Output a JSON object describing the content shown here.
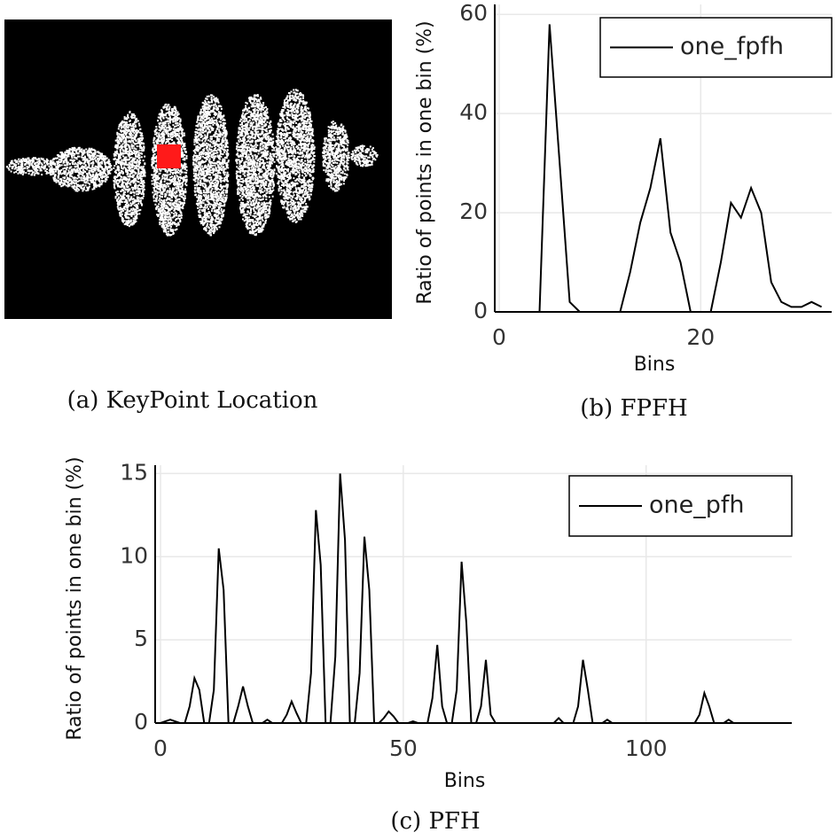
{
  "image_panel": {
    "caption": "(a) KeyPoint Location"
  },
  "chart_data": [
    {
      "type": "line",
      "caption": "(b) FPFH",
      "xlabel": "Bins",
      "ylabel": "Ratio of points in one bin (%)",
      "xlim": [
        0,
        33
      ],
      "xticks": [
        0,
        20
      ],
      "ylim": [
        0,
        62
      ],
      "yticks": [
        0,
        20,
        40,
        60
      ],
      "grid": true,
      "legend": "upper right",
      "series": [
        {
          "name": "one_fpfh",
          "color": "#000000",
          "x": [
            0,
            1,
            2,
            3,
            4,
            5,
            6,
            7,
            8,
            9,
            10,
            11,
            12,
            13,
            14,
            15,
            16,
            17,
            18,
            19,
            20,
            21,
            22,
            23,
            24,
            25,
            26,
            27,
            28,
            29,
            30,
            31,
            32
          ],
          "values": [
            0,
            0,
            0,
            0,
            0,
            58,
            30,
            2,
            0,
            0,
            0,
            0,
            0,
            8,
            18,
            25,
            35,
            16,
            10,
            0,
            0,
            0,
            10,
            22,
            19,
            25,
            20,
            6,
            2,
            1,
            1,
            2,
            1
          ]
        }
      ]
    },
    {
      "type": "line",
      "caption": "(c) PFH",
      "xlabel": "Bins",
      "ylabel": "Ratio of points in one bin (%)",
      "xlim": [
        0,
        130
      ],
      "xticks": [
        0,
        50,
        100
      ],
      "ylim": [
        0,
        15.5
      ],
      "yticks": [
        0,
        5,
        10,
        15
      ],
      "grid": true,
      "legend": "upper right",
      "series": [
        {
          "name": "one_pfh",
          "color": "#000000",
          "x": [
            0,
            1,
            2,
            3,
            4,
            5,
            6,
            7,
            8,
            9,
            10,
            11,
            12,
            13,
            14,
            15,
            16,
            17,
            18,
            19,
            20,
            21,
            22,
            23,
            24,
            25,
            26,
            27,
            28,
            29,
            30,
            31,
            32,
            33,
            34,
            35,
            36,
            37,
            38,
            39,
            40,
            41,
            42,
            43,
            44,
            45,
            46,
            47,
            48,
            49,
            50,
            51,
            52,
            53,
            54,
            55,
            56,
            57,
            58,
            59,
            60,
            61,
            62,
            63,
            64,
            65,
            66,
            67,
            68,
            69,
            70,
            71,
            72,
            73,
            74,
            75,
            76,
            77,
            78,
            79,
            80,
            81,
            82,
            83,
            84,
            85,
            86,
            87,
            88,
            89,
            90,
            91,
            92,
            93,
            94,
            95,
            96,
            97,
            98,
            99,
            100,
            101,
            102,
            103,
            104,
            105,
            106,
            107,
            108,
            109,
            110,
            111,
            112,
            113,
            114,
            115,
            116,
            117,
            118,
            119,
            120,
            121,
            122,
            123,
            124
          ],
          "values": [
            0,
            0.1,
            0.2,
            0.1,
            0,
            0,
            1,
            2.7,
            2,
            0,
            0,
            2,
            10.5,
            8,
            0,
            0,
            1,
            2.2,
            1,
            0,
            0,
            0,
            0.2,
            0,
            0,
            0,
            0.5,
            1.3,
            0.6,
            0,
            0,
            3,
            12.8,
            9.5,
            0,
            0,
            4,
            15,
            11,
            0,
            0,
            3,
            11.2,
            8,
            0,
            0,
            0.3,
            0.7,
            0.4,
            0,
            0,
            0,
            0.1,
            0,
            0,
            0,
            1.5,
            4.7,
            1,
            0,
            0,
            2,
            9.7,
            6,
            0,
            0,
            1,
            3.8,
            0.5,
            0,
            0,
            0,
            0,
            0,
            0,
            0,
            0,
            0,
            0,
            0,
            0,
            0,
            0.3,
            0,
            0,
            0,
            1,
            3.8,
            2,
            0,
            0,
            0,
            0.2,
            0,
            0,
            0,
            0,
            0,
            0,
            0,
            0,
            0,
            0,
            0,
            0,
            0,
            0,
            0,
            0,
            0,
            0,
            0.5,
            1.8,
            1,
            0,
            0,
            0,
            0.2,
            0,
            0,
            0,
            0,
            0,
            0,
            0
          ]
        }
      ]
    }
  ]
}
